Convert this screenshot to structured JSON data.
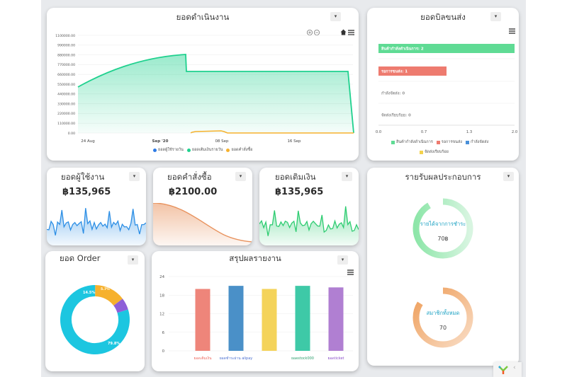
{
  "operations": {
    "title": "ยอดดำเนินงาน",
    "y_ticks": [
      "1100000.00",
      "990000.00",
      "880000.00",
      "770000.00",
      "660000.00",
      "550000.00",
      "440000.00",
      "330000.00",
      "220000.00",
      "110000.00",
      "0.00"
    ],
    "x_ticks": [
      "24 Aug",
      "Sep '20",
      "08 Sep",
      "16 Sep"
    ],
    "legend": [
      "ยอดผู้ใช้รายวัน",
      "ยอดเติมเงินรายวัน",
      "ยอดคำสั่งซื้อ"
    ],
    "colors": [
      "#2d7be5",
      "#1fd18e",
      "#f6b12d"
    ]
  },
  "bills": {
    "title": "ยอดบิลขนส่ง",
    "rows": [
      {
        "label": "สินค้ากำลังดำเนินการ: 2",
        "value": 2,
        "color": "#5fdb94"
      },
      {
        "label": "รอการขนส่ง: 1",
        "value": 1,
        "color": "#ee7b6f"
      },
      {
        "label": "กำลังจัดส่ง: 0",
        "value": 0,
        "color": "#4a90d9"
      },
      {
        "label": "จัดส่งเรียบร้อย: 0",
        "value": 0,
        "color": "#f4d24d"
      }
    ],
    "x_ticks": [
      "0.0",
      "0.7",
      "1.3",
      "2.0"
    ],
    "legend": [
      "สินค้ากำลังดำเนินการ",
      "รอการขนส่ง",
      "กำลังจัดส่ง",
      "จัดส่งเรียบร้อย"
    ]
  },
  "users": {
    "title": "ยอดผู้ใช้งาน",
    "value": "฿135,965",
    "color": "#2d8fe5"
  },
  "orders_total": {
    "title": "ยอดคำสั่งซื้อ",
    "value": "฿2100.00",
    "color": "#e8925d"
  },
  "topup": {
    "title": "ยอดเติมเงิน",
    "value": "฿135,965",
    "color": "#2ecc71"
  },
  "income": {
    "title": "รายรับผลประกอบการ",
    "ring1": {
      "label": "รายได้จากการชำระ",
      "value": "70฿",
      "color": "#8ee6a9"
    },
    "ring2": {
      "label": "สมาชิกทั้งหมด",
      "value": "70",
      "color": "#ee9e5a"
    }
  },
  "order_donut": {
    "title": "ยอด Order",
    "slices": [
      {
        "label": "79.8%",
        "value": 79.8,
        "color": "#1cc6e0"
      },
      {
        "label": "14.5%",
        "value": 14.5,
        "color": "#f6b12d"
      },
      {
        "label": "5.7%",
        "value": 5.7,
        "color": "#8e5fd8"
      }
    ]
  },
  "report": {
    "title": "สรุปผลรายงาน",
    "y_ticks": [
      "24",
      "18",
      "12",
      "6",
      "0"
    ],
    "bars": [
      {
        "label": "ยอดเติมเงิน",
        "value": 20,
        "color": "#ee857a"
      },
      {
        "label": "ยอดชำระผ่าน alipay",
        "value": 21,
        "color": "#4a90c8"
      },
      {
        "label": "",
        "value": 20,
        "color": "#f4d35a"
      },
      {
        "label": "ยอดstock000",
        "value": 21,
        "color": "#3ec9a7"
      },
      {
        "label": "ยอดticket",
        "value": 20.5,
        "color": "#b07fd2"
      }
    ],
    "label_colors": [
      "#ee6a5f",
      "#4a6fd0",
      "#333",
      "#2a9d6b",
      "#8a4fc8"
    ]
  },
  "menu_glyph": "▾",
  "icons": {
    "zoom": "zoom-in-out-icon",
    "home": "home-icon",
    "menu": "hamburger-menu-icon",
    "app": "app-logo-icon"
  }
}
